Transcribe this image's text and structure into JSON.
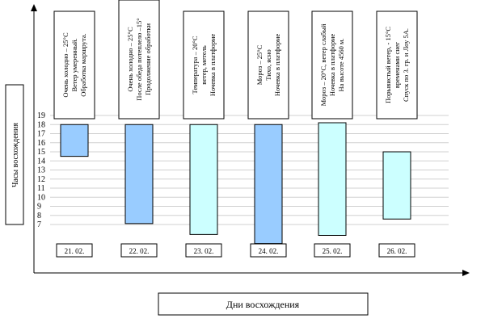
{
  "chart_data": {
    "type": "bar",
    "ylabel": "Часы восхождения",
    "xlabel": "Дни   восхождения",
    "yticks": [
      19,
      18,
      17,
      16,
      15,
      14,
      13,
      12,
      11,
      10,
      9,
      8,
      7
    ],
    "ylim": [
      4,
      19
    ],
    "grid": true,
    "categories": [
      "21. 02.",
      "22. 02.",
      "23. 02.",
      "24. 02.",
      "25. 02.",
      "26. 02."
    ],
    "bars": [
      {
        "day": "21. 02.",
        "low": 14.5,
        "high": 18,
        "color": "#99ccff"
      },
      {
        "day": "22. 02.",
        "low": 7.1,
        "high": 18,
        "color": "#99ccff"
      },
      {
        "day": "23. 02.",
        "low": 5.9,
        "high": 18,
        "color": "#ccffff"
      },
      {
        "day": "24. 02.",
        "low": 4.9,
        "high": 18,
        "color": "#99ccff"
      },
      {
        "day": "25. 02.",
        "low": 5.8,
        "high": 18.2,
        "color": "#ccffff"
      },
      {
        "day": "26. 02.",
        "low": 7.6,
        "high": 15,
        "color": "#ccffff"
      }
    ],
    "annotations": [
      [
        "Очень холодно – 25°С",
        "Ветер умеренный.",
        "Обработка маршрута."
      ],
      [
        "Очень холодно – 25°С",
        "После обеда потеплело –15°",
        "Продолжение обработки"
      ],
      [
        "Температура – 20°С",
        "ветер, метель",
        "Ночевка в платформе"
      ],
      [
        "Мороз – 25°С",
        "Тихо, ясно",
        "Ночевка в платформе"
      ],
      [
        "Мороз – 20°С, ветер слабый",
        "Ночевка в платформе",
        "На высоте 4560 м."
      ],
      [
        "Порывистый ветер, - 15°С",
        "временами снег",
        "Спуск по 3. гр. и Лоу 5А."
      ]
    ]
  }
}
